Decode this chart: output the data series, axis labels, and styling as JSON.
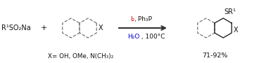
{
  "bg_color": "#ffffff",
  "reagent_text": "R¹SO₂Na",
  "plus_text": "+",
  "i2_text": "I₂,",
  "ph3p_text": " Ph₃P",
  "h2o_text": "H₂O",
  "temp_text": " , 100°C",
  "x_label": "X= OH, OMe, N(CH₃)₂",
  "yield_text": "71-92%",
  "product_sr_label": "SR¹",
  "x_substituent": "X",
  "arrow_color": "#333333",
  "i2_color": "#cc0000",
  "h2o_color": "#0000cc",
  "text_color": "#111111",
  "dashed_ring_color": "#777777",
  "solid_ring_color": "#111111"
}
